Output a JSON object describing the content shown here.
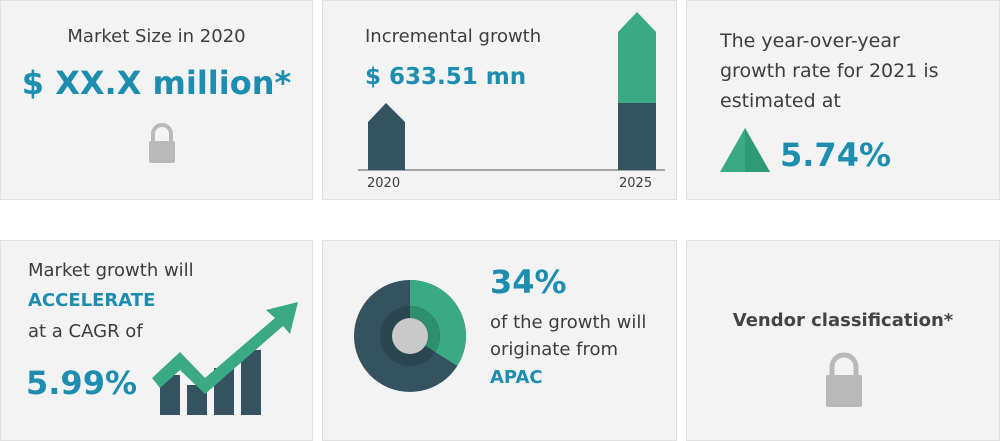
{
  "cards": [
    {
      "title": "Market Size in 2020",
      "value": "$ XX.X million*"
    },
    {
      "title": "Incremental growth",
      "value": "$ 633.51 mn",
      "labels": [
        "2020",
        "2025"
      ]
    },
    {
      "title": "The year-over-year growth rate for 2021 is estimated at",
      "value": "5.74%"
    },
    {
      "lines": [
        "Market growth will",
        "ACCELERATE",
        "at a CAGR of"
      ],
      "value": "5.99%"
    },
    {
      "share": 34,
      "share_label": "34%",
      "lines": [
        "of the growth will",
        "originate from"
      ],
      "region": "APAC"
    },
    {
      "title": "Vendor classification*"
    }
  ]
}
